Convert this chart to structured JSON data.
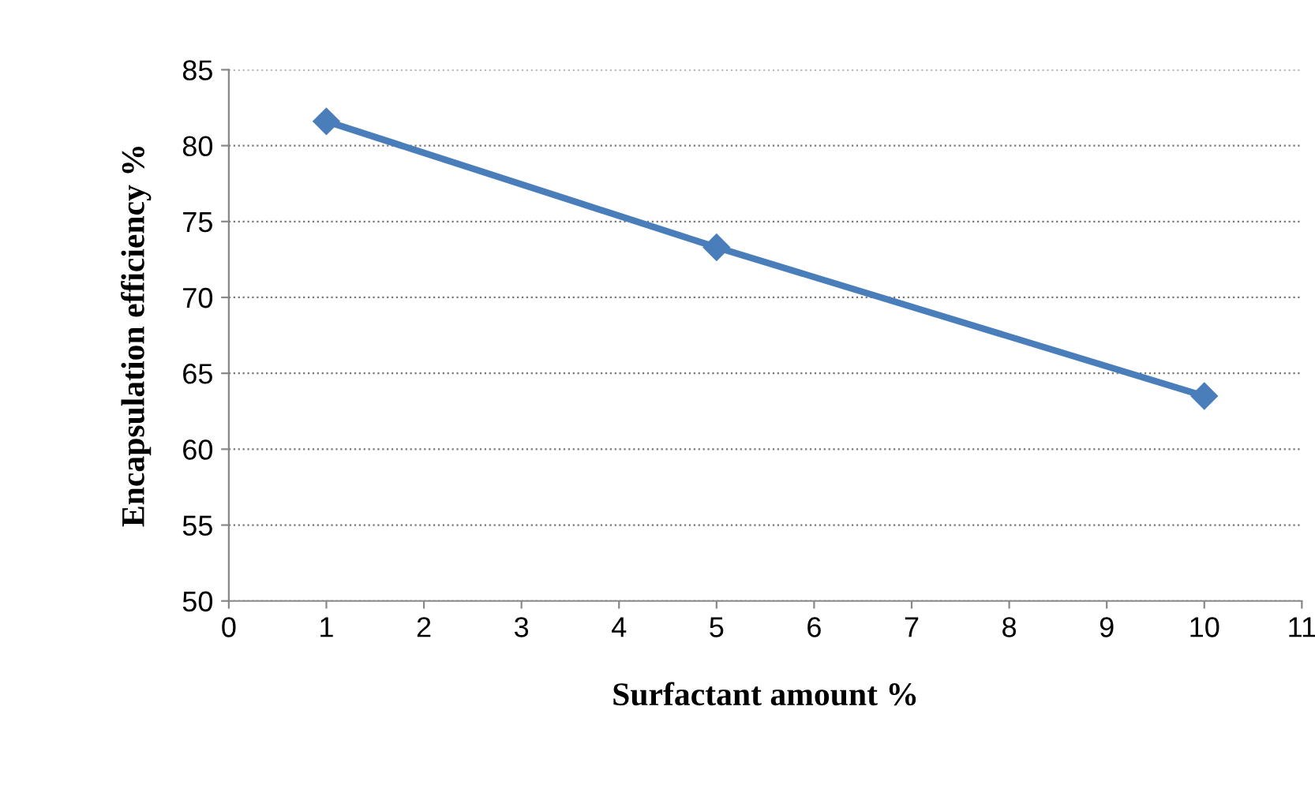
{
  "chart_data": {
    "type": "line",
    "xlabel": "Surfactant amount %",
    "ylabel": "Encapsulation efficiency %",
    "x": [
      1,
      5,
      10
    ],
    "series": [
      {
        "color": "#4a7ebb",
        "values": [
          81.6,
          73.3,
          63.5
        ]
      }
    ],
    "xlim": [
      0,
      11
    ],
    "xticks": [
      0,
      1,
      2,
      3,
      4,
      5,
      6,
      7,
      8,
      9,
      10,
      11
    ],
    "ylim": [
      50,
      85
    ],
    "yticks": [
      50,
      55,
      60,
      65,
      70,
      75,
      80,
      85
    ],
    "grid": "y",
    "marker": "diamond",
    "line_style": "solid",
    "legend": false
  }
}
